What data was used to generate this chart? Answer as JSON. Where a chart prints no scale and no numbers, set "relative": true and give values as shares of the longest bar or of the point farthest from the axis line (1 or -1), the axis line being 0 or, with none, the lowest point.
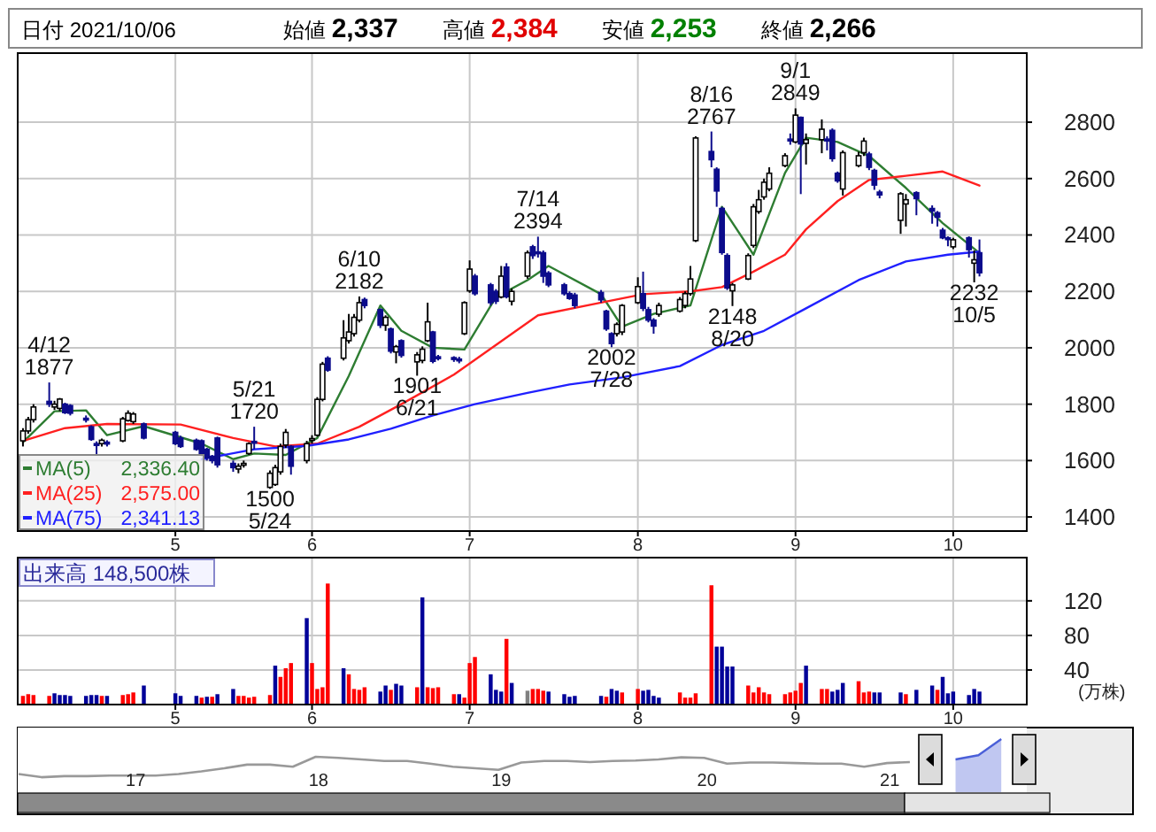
{
  "chart_data": [
    {
      "type": "candlestick",
      "x": [
        "2021-04-07",
        "2021-04-08",
        "2021-04-09",
        "2021-04-12",
        "2021-04-13",
        "2021-04-14",
        "2021-04-15",
        "2021-04-16",
        "2021-04-19",
        "2021-04-20",
        "2021-04-21",
        "2021-04-22",
        "2021-04-23",
        "2021-04-26",
        "2021-04-27",
        "2021-04-28",
        "2021-04-30",
        "2021-05-06",
        "2021-05-07",
        "2021-05-10",
        "2021-05-11",
        "2021-05-12",
        "2021-05-13",
        "2021-05-14",
        "2021-05-17",
        "2021-05-18",
        "2021-05-19",
        "2021-05-20",
        "2021-05-21",
        "2021-05-24",
        "2021-05-25",
        "2021-05-26",
        "2021-05-27",
        "2021-05-28",
        "2021-05-31",
        "2021-06-01",
        "2021-06-02",
        "2021-06-03",
        "2021-06-04",
        "2021-06-07",
        "2021-06-08",
        "2021-06-09",
        "2021-06-10",
        "2021-06-11",
        "2021-06-14",
        "2021-06-15",
        "2021-06-16",
        "2021-06-17",
        "2021-06-18",
        "2021-06-21",
        "2021-06-22",
        "2021-06-23",
        "2021-06-24",
        "2021-06-25",
        "2021-06-28",
        "2021-06-29",
        "2021-06-30",
        "2021-07-01",
        "2021-07-02",
        "2021-07-05",
        "2021-07-06",
        "2021-07-07",
        "2021-07-08",
        "2021-07-09",
        "2021-07-12",
        "2021-07-13",
        "2021-07-14",
        "2021-07-15",
        "2021-07-16",
        "2021-07-19",
        "2021-07-20",
        "2021-07-21",
        "2021-07-26",
        "2021-07-27",
        "2021-07-28",
        "2021-07-29",
        "2021-07-30",
        "2021-08-02",
        "2021-08-03",
        "2021-08-04",
        "2021-08-05",
        "2021-08-06",
        "2021-08-10",
        "2021-08-11",
        "2021-08-12",
        "2021-08-13",
        "2021-08-16",
        "2021-08-17",
        "2021-08-18",
        "2021-08-19",
        "2021-08-20",
        "2021-08-23",
        "2021-08-24",
        "2021-08-25",
        "2021-08-26",
        "2021-08-27",
        "2021-08-30",
        "2021-08-31",
        "2021-09-01",
        "2021-09-02",
        "2021-09-03",
        "2021-09-06",
        "2021-09-07",
        "2021-09-08",
        "2021-09-09",
        "2021-09-10",
        "2021-09-13",
        "2021-09-14",
        "2021-09-15",
        "2021-09-16",
        "2021-09-17",
        "2021-09-21",
        "2021-09-22",
        "2021-09-24",
        "2021-09-27",
        "2021-09-28",
        "2021-09-29",
        "2021-09-30",
        "2021-10-01",
        "2021-10-04",
        "2021-10-05",
        "2021-10-06"
      ],
      "xlim": [
        "2021-04-06",
        "2021-10-15"
      ],
      "xticks": [
        {
          "value": "2021-05-06",
          "label": "5"
        },
        {
          "value": "2021-06-01",
          "label": "6"
        },
        {
          "value": "2021-07-01",
          "label": "7"
        },
        {
          "value": "2021-08-02",
          "label": "8"
        },
        {
          "value": "2021-09-01",
          "label": "9"
        },
        {
          "value": "2021-10-01",
          "label": "10"
        }
      ],
      "ylim": [
        1350,
        3045
      ],
      "yticks": [
        1400,
        1600,
        1800,
        2000,
        2200,
        2400,
        2600,
        2800
      ],
      "grid": true,
      "legend": "bottom left",
      "colors": [
        "#ffffff",
        "#ffffff",
        "#ffffff",
        "#0c0c8c",
        "#ffffff",
        "#ffffff",
        "#0c0c8c",
        "#0c0c8c",
        "#0c0c8c",
        "#0c0c8c",
        "#0c0c8c",
        "#ffffff",
        "#0c0c8c",
        "#ffffff",
        "#ffffff",
        "#ffffff",
        "#0c0c8c",
        "#0c0c8c",
        "#0c0c8c",
        "#0c0c8c",
        "#0c0c8c",
        "#0c0c8c",
        "#0c0c8c",
        "#0c0c8c",
        "#0c0c8c",
        "#ffffff",
        "#ffffff",
        "#ffffff",
        "#0c0c8c",
        "#ffffff",
        "#ffffff",
        "#ffffff",
        "#ffffff",
        "#0c0c8c",
        "#ffffff",
        "#ffffff",
        "#ffffff",
        "#ffffff",
        "#0c0c8c",
        "#ffffff",
        "#ffffff",
        "#ffffff",
        "#ffffff",
        "#0c0c8c",
        "#0c0c8c",
        "#ffffff",
        "#0c0c8c",
        "#ffffff",
        "#0c0c8c",
        "#ffffff",
        "#ffffff",
        "#ffffff",
        "#0c0c8c",
        "#0c0c8c",
        "#0c0c8c",
        "#0c0c8c",
        "#ffffff",
        "#ffffff",
        "#0c0c8c",
        "#0c0c8c",
        "#0c0c8c",
        "#ffffff",
        "#0c0c8c",
        "#ffffff",
        "#ffffff",
        "#0c0c8c",
        "#0c0c8c",
        "#0c0c8c",
        "#0c0c8c",
        "#0c0c8c",
        "#0c0c8c",
        "#0c0c8c",
        "#0c0c8c",
        "#0c0c8c",
        "#0c0c8c",
        "#ffffff",
        "#ffffff",
        "#ffffff",
        "#0c0c8c",
        "#0c0c8c",
        "#0c0c8c",
        "#ffffff",
        "#ffffff",
        "#ffffff",
        "#ffffff",
        "#ffffff",
        "#0c0c8c",
        "#0c0c8c",
        "#0c0c8c",
        "#0c0c8c",
        "#ffffff",
        "#ffffff",
        "#ffffff",
        "#ffffff",
        "#ffffff",
        "#ffffff",
        "#ffffff",
        "#0c0c8c",
        "#ffffff",
        "#0c0c8c",
        "#ffffff",
        "#ffffff",
        "#0c0c8c",
        "#0c0c8c",
        "#0c0c8c",
        "#ffffff",
        "#ffffff",
        "#ffffff",
        "#0c0c8c",
        "#0c0c8c",
        "#0c0c8c",
        "#ffffff",
        "#ffffff",
        "#0c0c8c",
        "#0c0c8c",
        "#0c0c8c",
        "#0c0c8c",
        "#0c0c8c",
        "#ffffff",
        "#0c0c8c",
        "#ffffff",
        "#0c0c8c"
      ],
      "ohlc": [
        [
          1670,
          1715,
          1650,
          1705
        ],
        [
          1705,
          1755,
          1695,
          1745
        ],
        [
          1745,
          1800,
          1735,
          1790
        ],
        [
          1810,
          1877,
          1790,
          1800
        ],
        [
          1790,
          1812,
          1780,
          1800
        ],
        [
          1785,
          1822,
          1775,
          1818
        ],
        [
          1800,
          1805,
          1765,
          1770
        ],
        [
          1795,
          1800,
          1760,
          1768
        ],
        [
          1750,
          1760,
          1735,
          1748
        ],
        [
          1720,
          1725,
          1670,
          1675
        ],
        [
          1660,
          1668,
          1618,
          1658
        ],
        [
          1660,
          1678,
          1650,
          1672
        ],
        [
          1665,
          1672,
          1650,
          1663
        ],
        [
          1670,
          1755,
          1665,
          1748
        ],
        [
          1742,
          1778,
          1738,
          1768
        ],
        [
          1738,
          1772,
          1730,
          1765
        ],
        [
          1730,
          1735,
          1675,
          1680
        ],
        [
          1700,
          1705,
          1655,
          1660
        ],
        [
          1680,
          1688,
          1645,
          1650
        ],
        [
          1672,
          1678,
          1635,
          1640
        ],
        [
          1670,
          1675,
          1615,
          1620
        ],
        [
          1640,
          1645,
          1600,
          1610
        ],
        [
          1615,
          1620,
          1590,
          1600
        ],
        [
          1680,
          1685,
          1575,
          1585
        ],
        [
          1590,
          1600,
          1560,
          1575
        ],
        [
          1570,
          1590,
          1555,
          1580
        ],
        [
          1585,
          1600,
          1575,
          1590
        ],
        [
          1625,
          1665,
          1620,
          1660
        ],
        [
          1668,
          1720,
          1640,
          1665
        ],
        [
          1505,
          1565,
          1500,
          1555
        ],
        [
          1515,
          1585,
          1510,
          1575
        ],
        [
          1560,
          1660,
          1550,
          1650
        ],
        [
          1655,
          1712,
          1645,
          1700
        ],
        [
          1650,
          1655,
          1550,
          1580
        ],
        [
          1600,
          1670,
          1590,
          1660
        ],
        [
          1672,
          1690,
          1660,
          1678
        ],
        [
          1690,
          1825,
          1685,
          1817
        ],
        [
          1817,
          1950,
          1810,
          1942
        ],
        [
          1963,
          1970,
          1915,
          1921
        ],
        [
          1963,
          2098,
          1955,
          2035
        ],
        [
          2025,
          2120,
          2015,
          2056
        ],
        [
          2050,
          2120,
          2040,
          2108
        ],
        [
          2098,
          2182,
          2090,
          2160
        ],
        [
          2171,
          2178,
          2140,
          2150
        ],
        [
          2135,
          2140,
          2070,
          2080
        ],
        [
          2080,
          2115,
          2060,
          2108
        ],
        [
          2067,
          2072,
          1980,
          1988
        ],
        [
          1985,
          2010,
          1945,
          2004
        ],
        [
          2025,
          2030,
          1965,
          1973
        ],
        [
          1950,
          1985,
          1901,
          1975
        ],
        [
          1955,
          2005,
          1945,
          1995
        ],
        [
          2025,
          2160,
          2020,
          2092
        ],
        [
          2056,
          2060,
          1945,
          1952
        ],
        [
          1968,
          1975,
          1955,
          1966
        ],
        [
          1965,
          1970,
          1950,
          1962
        ],
        [
          1960,
          1968,
          1945,
          1958
        ],
        [
          2050,
          2165,
          2045,
          2160
        ],
        [
          2202,
          2310,
          2195,
          2279
        ],
        [
          2254,
          2262,
          2185,
          2192
        ],
        [
          2223,
          2230,
          2150,
          2160
        ],
        [
          2200,
          2208,
          2155,
          2165
        ],
        [
          2180,
          2290,
          2175,
          2254
        ],
        [
          2286,
          2300,
          2175,
          2181
        ],
        [
          2165,
          2210,
          2150,
          2200
        ],
        [
          2254,
          2345,
          2245,
          2337
        ],
        [
          2358,
          2365,
          2315,
          2327
        ],
        [
          2340,
          2394,
          2320,
          2335
        ],
        [
          2337,
          2345,
          2230,
          2254
        ],
        [
          2265,
          2272,
          2215,
          2223
        ],
        [
          2223,
          2230,
          2185,
          2192
        ],
        [
          2192,
          2200,
          2170,
          2175
        ],
        [
          2187,
          2195,
          2140,
          2150
        ],
        [
          2196,
          2205,
          2160,
          2170
        ],
        [
          2130,
          2135,
          2060,
          2067
        ],
        [
          2050,
          2055,
          2002,
          2015
        ],
        [
          2050,
          2090,
          2040,
          2083
        ],
        [
          2056,
          2155,
          2045,
          2150
        ],
        [
          2160,
          2250,
          2155,
          2217
        ],
        [
          2192,
          2270,
          2130,
          2140
        ],
        [
          2135,
          2145,
          2090,
          2098
        ],
        [
          2098,
          2105,
          2050,
          2077
        ],
        [
          2119,
          2160,
          2110,
          2150
        ],
        [
          2130,
          2180,
          2125,
          2171
        ],
        [
          2150,
          2200,
          2140,
          2192
        ],
        [
          2192,
          2290,
          2185,
          2244
        ],
        [
          2380,
          2750,
          2375,
          2744
        ],
        [
          2696,
          2767,
          2640,
          2667
        ],
        [
          2633,
          2640,
          2500,
          2556
        ],
        [
          2494,
          2500,
          2330,
          2338
        ],
        [
          2327,
          2335,
          2205,
          2212
        ],
        [
          2202,
          2230,
          2148,
          2223
        ],
        [
          2244,
          2335,
          2240,
          2327
        ],
        [
          2363,
          2510,
          2355,
          2500
        ],
        [
          2483,
          2560,
          2475,
          2525
        ],
        [
          2535,
          2600,
          2525,
          2587
        ],
        [
          2563,
          2640,
          2555,
          2619
        ],
        [
          2646,
          2690,
          2640,
          2681
        ],
        [
          2740,
          2760,
          2720,
          2735
        ],
        [
          2730,
          2849,
          2725,
          2825
        ],
        [
          2817,
          2820,
          2545,
          2723
        ],
        [
          2725,
          2760,
          2650,
          2738
        ],
        [
          2738,
          2810,
          2690,
          2775
        ],
        [
          2740,
          2750,
          2700,
          2735
        ],
        [
          2771,
          2778,
          2660,
          2671
        ],
        [
          2619,
          2625,
          2585,
          2592
        ],
        [
          2563,
          2700,
          2540,
          2692
        ],
        [
          2646,
          2695,
          2640,
          2681
        ],
        [
          2692,
          2745,
          2680,
          2733
        ],
        [
          2687,
          2695,
          2630,
          2640
        ],
        [
          2629,
          2635,
          2560,
          2577
        ],
        [
          2552,
          2560,
          2530,
          2542
        ],
        [
          2452,
          2552,
          2404,
          2546
        ],
        [
          2510,
          2545,
          2430,
          2525
        ],
        [
          2550,
          2555,
          2470,
          2529
        ],
        [
          2494,
          2505,
          2440,
          2485
        ],
        [
          2479,
          2485,
          2430,
          2463
        ],
        [
          2417,
          2425,
          2385,
          2390
        ],
        [
          2390,
          2395,
          2360,
          2384
        ],
        [
          2358,
          2390,
          2350,
          2383
        ],
        [
          2390,
          2395,
          2320,
          2348
        ],
        [
          2300,
          2345,
          2232,
          2312
        ],
        [
          2337,
          2384,
          2253,
          2266
        ]
      ],
      "series": [
        {
          "name": "MA(5) 2,336.40",
          "type": "line",
          "color": "#2e7d32",
          "x": [
            "2021-04-07",
            "2021-04-13",
            "2021-04-19",
            "2021-04-23",
            "2021-04-30",
            "2021-05-11",
            "2021-05-17",
            "2021-05-21",
            "2021-05-27",
            "2021-06-02",
            "2021-06-08",
            "2021-06-14",
            "2021-06-18",
            "2021-06-24",
            "2021-06-30",
            "2021-07-06",
            "2021-07-12",
            "2021-07-16",
            "2021-07-26",
            "2021-07-30",
            "2021-08-05",
            "2021-08-12",
            "2021-08-18",
            "2021-08-24",
            "2021-08-30",
            "2021-09-03",
            "2021-09-09",
            "2021-09-15",
            "2021-09-22",
            "2021-09-29",
            "2021-10-06"
          ],
          "values": [
            1665,
            1775,
            1778,
            1690,
            1722,
            1660,
            1605,
            1625,
            1620,
            1680,
            1900,
            2150,
            2060,
            2000,
            1994,
            2180,
            2240,
            2290,
            2190,
            2075,
            2120,
            2150,
            2500,
            2330,
            2620,
            2745,
            2730,
            2680,
            2567,
            2442,
            2336
          ]
        },
        {
          "name": "MA(25) 2,575.00",
          "type": "line",
          "color": "#ff2020",
          "x": [
            "2021-04-07",
            "2021-04-15",
            "2021-04-23",
            "2021-05-07",
            "2021-05-17",
            "2021-05-25",
            "2021-06-02",
            "2021-06-10",
            "2021-06-18",
            "2021-06-28",
            "2021-07-06",
            "2021-07-14",
            "2021-07-26",
            "2021-08-03",
            "2021-08-12",
            "2021-08-18",
            "2021-08-24",
            "2021-08-30",
            "2021-09-03",
            "2021-09-09",
            "2021-09-15",
            "2021-09-22",
            "2021-09-29",
            "2021-10-06"
          ],
          "values": [
            1670,
            1715,
            1730,
            1728,
            1680,
            1650,
            1660,
            1720,
            1800,
            1905,
            2010,
            2115,
            2160,
            2190,
            2200,
            2215,
            2270,
            2330,
            2420,
            2520,
            2595,
            2610,
            2625,
            2575
          ]
        },
        {
          "name": "MA(75) 2,341.13",
          "type": "line",
          "color": "#2020ff",
          "x": [
            "2021-05-11",
            "2021-05-21",
            "2021-05-31",
            "2021-06-08",
            "2021-06-16",
            "2021-06-24",
            "2021-07-02",
            "2021-07-12",
            "2021-07-20",
            "2021-07-30",
            "2021-08-10",
            "2021-08-18",
            "2021-08-26",
            "2021-09-03",
            "2021-09-13",
            "2021-09-22",
            "2021-09-30",
            "2021-10-06"
          ],
          "values": [
            1605,
            1640,
            1652,
            1675,
            1713,
            1760,
            1800,
            1840,
            1870,
            1895,
            1935,
            2010,
            2060,
            2140,
            2240,
            2306,
            2330,
            2341
          ]
        }
      ],
      "annotations": [
        "日付 2021/10/06",
        "始値 2,337",
        "高値 2,384",
        "安値 2,253",
        "終値 2,266",
        {
          "text": "4/12\n1877",
          "x": "2021-04-12",
          "y": 1877
        },
        {
          "text": "5/21\n1720",
          "x": "2021-05-21",
          "y": 1720
        },
        {
          "text": "1500\n5/24",
          "x": "2021-05-24",
          "y": 1500
        },
        {
          "text": "6/10\n2182",
          "x": "2021-06-10",
          "y": 2182
        },
        {
          "text": "1901\n6/21",
          "x": "2021-06-21",
          "y": 1901
        },
        {
          "text": "7/14\n2394",
          "x": "2021-07-14",
          "y": 2394
        },
        {
          "text": "2002\n7/28",
          "x": "2021-07-28",
          "y": 2002
        },
        {
          "text": "8/16\n2767",
          "x": "2021-08-16",
          "y": 2767
        },
        {
          "text": "2148\n8/20",
          "x": "2021-08-20",
          "y": 2148
        },
        {
          "text": "9/1\n2849",
          "x": "2021-09-01",
          "y": 2849
        },
        {
          "text": "2232\n10/5",
          "x": "2021-10-05",
          "y": 2232
        }
      ]
    },
    {
      "type": "bar",
      "title": "出来高 148,500株",
      "ylabel": "(万株)",
      "x": [
        "2021-04-07",
        "2021-04-08",
        "2021-04-09",
        "2021-04-12",
        "2021-04-13",
        "2021-04-14",
        "2021-04-15",
        "2021-04-16",
        "2021-04-19",
        "2021-04-20",
        "2021-04-21",
        "2021-04-22",
        "2021-04-23",
        "2021-04-26",
        "2021-04-27",
        "2021-04-28",
        "2021-04-30",
        "2021-05-06",
        "2021-05-07",
        "2021-05-10",
        "2021-05-11",
        "2021-05-12",
        "2021-05-13",
        "2021-05-14",
        "2021-05-17",
        "2021-05-18",
        "2021-05-19",
        "2021-05-20",
        "2021-05-21",
        "2021-05-24",
        "2021-05-25",
        "2021-05-26",
        "2021-05-27",
        "2021-05-28",
        "2021-05-31",
        "2021-06-01",
        "2021-06-02",
        "2021-06-03",
        "2021-06-04",
        "2021-06-07",
        "2021-06-08",
        "2021-06-09",
        "2021-06-10",
        "2021-06-11",
        "2021-06-14",
        "2021-06-15",
        "2021-06-16",
        "2021-06-17",
        "2021-06-18",
        "2021-06-21",
        "2021-06-22",
        "2021-06-23",
        "2021-06-24",
        "2021-06-25",
        "2021-06-28",
        "2021-06-29",
        "2021-06-30",
        "2021-07-01",
        "2021-07-02",
        "2021-07-05",
        "2021-07-06",
        "2021-07-07",
        "2021-07-08",
        "2021-07-09",
        "2021-07-12",
        "2021-07-13",
        "2021-07-14",
        "2021-07-15",
        "2021-07-16",
        "2021-07-19",
        "2021-07-20",
        "2021-07-21",
        "2021-07-26",
        "2021-07-27",
        "2021-07-28",
        "2021-07-29",
        "2021-07-30",
        "2021-08-02",
        "2021-08-03",
        "2021-08-04",
        "2021-08-05",
        "2021-08-06",
        "2021-08-10",
        "2021-08-11",
        "2021-08-12",
        "2021-08-13",
        "2021-08-16",
        "2021-08-17",
        "2021-08-18",
        "2021-08-19",
        "2021-08-20",
        "2021-08-23",
        "2021-08-24",
        "2021-08-25",
        "2021-08-26",
        "2021-08-27",
        "2021-08-30",
        "2021-08-31",
        "2021-09-01",
        "2021-09-02",
        "2021-09-03",
        "2021-09-06",
        "2021-09-07",
        "2021-09-08",
        "2021-09-09",
        "2021-09-10",
        "2021-09-13",
        "2021-09-14",
        "2021-09-15",
        "2021-09-16",
        "2021-09-17",
        "2021-09-21",
        "2021-09-22",
        "2021-09-24",
        "2021-09-27",
        "2021-09-28",
        "2021-09-29",
        "2021-09-30",
        "2021-10-01",
        "2021-10-04",
        "2021-10-05",
        "2021-10-06"
      ],
      "xlim": [
        "2021-04-06",
        "2021-10-15"
      ],
      "xticks": [
        {
          "value": "2021-05-06",
          "label": "5"
        },
        {
          "value": "2021-06-01",
          "label": "6"
        },
        {
          "value": "2021-07-01",
          "label": "7"
        },
        {
          "value": "2021-08-02",
          "label": "8"
        },
        {
          "value": "2021-09-01",
          "label": "9"
        },
        {
          "value": "2021-10-01",
          "label": "10"
        }
      ],
      "ylim": [
        0,
        170
      ],
      "yticks": [
        40,
        80,
        120
      ],
      "grid": true,
      "values": [
        10,
        12,
        11,
        10,
        13,
        11,
        11,
        10,
        10,
        11,
        11,
        10,
        10,
        11,
        12,
        14,
        22,
        13,
        10,
        10,
        8,
        9,
        9,
        12,
        18,
        10,
        10,
        8,
        9,
        11,
        45,
        32,
        42,
        48,
        100,
        48,
        18,
        20,
        140,
        42,
        35,
        18,
        17,
        20,
        15,
        22,
        17,
        24,
        22,
        20,
        124,
        20,
        19,
        20,
        12,
        12,
        8,
        48,
        55,
        35,
        17,
        15,
        76,
        25,
        16,
        18,
        18,
        16,
        15,
        12,
        9,
        10,
        10,
        9,
        18,
        16,
        14,
        18,
        16,
        17,
        10,
        8,
        14,
        8,
        8,
        13,
        138,
        67,
        67,
        44,
        44,
        22,
        14,
        20,
        14,
        12,
        12,
        14,
        16,
        25,
        45,
        18,
        18,
        15,
        17,
        25,
        27,
        14,
        15,
        14,
        14,
        14,
        12,
        17,
        22,
        17,
        32,
        13,
        15,
        11,
        18,
        15
      ],
      "colors": [
        "#ff0000",
        "#ff0000",
        "#ff0000",
        "#ff0000",
        "#000099",
        "#000099",
        "#000099",
        "#000099",
        "#000099",
        "#000099",
        "#000099",
        "#ff0000",
        "#000099",
        "#ff0000",
        "#ff0000",
        "#ff0000",
        "#000099",
        "#000099",
        "#000099",
        "#000099",
        "#ff0000",
        "#000099",
        "#ff0000",
        "#000099",
        "#000099",
        "#ff0000",
        "#ff0000",
        "#ff0000",
        "#ff0000",
        "#ff0000",
        "#000099",
        "#ff0000",
        "#ff0000",
        "#ff0000",
        "#000099",
        "#ff0000",
        "#ff0000",
        "#ff0000",
        "#ff0000",
        "#000099",
        "#ff0000",
        "#ff0000",
        "#ff0000",
        "#ff0000",
        "#000099",
        "#000099",
        "#ff0000",
        "#000099",
        "#000099",
        "#ff0000",
        "#000099",
        "#ff0000",
        "#ff0000",
        "#ff0000",
        "#ff0000",
        "#000099",
        "#ff0000",
        "#ff0000",
        "#ff0000",
        "#000099",
        "#000099",
        "#000099",
        "#ff0000",
        "#000099",
        "#808080",
        "#ff0000",
        "#ff0000",
        "#ff0000",
        "#000099",
        "#000099",
        "#000099",
        "#000099",
        "#000099",
        "#ff0000",
        "#000099",
        "#000099",
        "#ff0000",
        "#ff0000",
        "#000099",
        "#000099",
        "#000099",
        "#000099",
        "#ff0000",
        "#ff0000",
        "#ff0000",
        "#ff0000",
        "#ff0000",
        "#000099",
        "#000099",
        "#000099",
        "#000099",
        "#ff0000",
        "#ff0000",
        "#ff0000",
        "#ff0000",
        "#ff0000",
        "#ff0000",
        "#ff0000",
        "#ff0000",
        "#ff0000",
        "#000099",
        "#ff0000",
        "#ff0000",
        "#000099",
        "#000099",
        "#000099",
        "#ff0000",
        "#ff0000",
        "#ff0000",
        "#000099",
        "#000099",
        "#000099",
        "#ff0000",
        "#000099",
        "#000099",
        "#ff0000",
        "#000099",
        "#000099",
        "#000099",
        "#000099",
        "#000099",
        "#000099"
      ]
    },
    {
      "type": "line",
      "relative": true,
      "tick_labels": "x",
      "categories": [
        null,
        null,
        null,
        null,
        null,
        "17",
        null,
        null,
        null,
        null,
        null,
        null,
        null,
        "18",
        null,
        null,
        null,
        null,
        null,
        null,
        null,
        "19",
        null,
        null,
        null,
        null,
        null,
        null,
        null,
        null,
        "20",
        null,
        null,
        null,
        null,
        null,
        null,
        null,
        "21",
        null,
        null,
        null,
        null,
        null,
        null
      ],
      "series": [
        {
          "type": "line",
          "color": "#999999",
          "values": [
            0.33,
            0.27,
            0.29,
            0.29,
            0.3,
            0.3,
            0.3,
            0.33,
            0.38,
            0.44,
            0.51,
            0.51,
            0.47,
            0.66,
            0.64,
            0.61,
            0.58,
            0.58,
            0.53,
            0.47,
            0.44,
            0.41,
            0.55,
            0.58,
            0.58,
            0.56,
            0.58,
            0.59,
            0.61,
            0.65,
            0.64,
            0.53,
            0.55,
            0.55,
            0.54,
            0.53,
            0.53,
            0.47,
            0.54,
            0.56,
            null,
            null,
            null,
            null,
            null
          ]
        },
        {
          "type": "area",
          "color": "#4a5fd8",
          "values": [
            null,
            null,
            null,
            null,
            null,
            null,
            null,
            null,
            null,
            null,
            null,
            null,
            null,
            null,
            null,
            null,
            null,
            null,
            null,
            null,
            null,
            null,
            null,
            null,
            null,
            null,
            null,
            null,
            null,
            null,
            null,
            null,
            null,
            null,
            null,
            null,
            null,
            null,
            null,
            null,
            null,
            0.61,
            0.69,
            1,
            null
          ]
        }
      ]
    }
  ]
}
